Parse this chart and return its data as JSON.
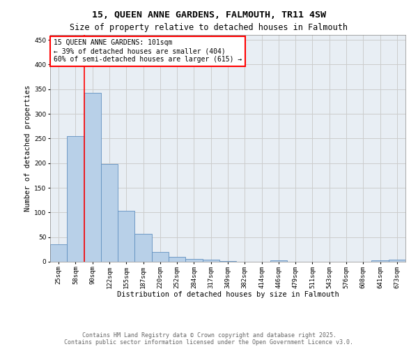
{
  "title1": "15, QUEEN ANNE GARDENS, FALMOUTH, TR11 4SW",
  "title2": "Size of property relative to detached houses in Falmouth",
  "xlabel": "Distribution of detached houses by size in Falmouth",
  "ylabel": "Number of detached properties",
  "categories": [
    "25sqm",
    "58sqm",
    "90sqm",
    "122sqm",
    "155sqm",
    "187sqm",
    "220sqm",
    "252sqm",
    "284sqm",
    "317sqm",
    "349sqm",
    "382sqm",
    "414sqm",
    "446sqm",
    "479sqm",
    "511sqm",
    "543sqm",
    "576sqm",
    "608sqm",
    "641sqm",
    "673sqm"
  ],
  "values": [
    35,
    255,
    343,
    198,
    103,
    57,
    20,
    10,
    6,
    4,
    2,
    0,
    0,
    3,
    0,
    0,
    0,
    0,
    0,
    3,
    4
  ],
  "bar_color": "#b8d0e8",
  "bar_edge_color": "#6090c0",
  "vline_color": "red",
  "vline_x_index": 1.5,
  "annotation_text": "15 QUEEN ANNE GARDENS: 101sqm\n← 39% of detached houses are smaller (404)\n60% of semi-detached houses are larger (615) →",
  "annotation_box_color": "white",
  "annotation_box_edge_color": "red",
  "ylim": [
    0,
    460
  ],
  "yticks": [
    0,
    50,
    100,
    150,
    200,
    250,
    300,
    350,
    400,
    450
  ],
  "grid_color": "#cccccc",
  "background_color": "#e8eef4",
  "footer1": "Contains HM Land Registry data © Crown copyright and database right 2025.",
  "footer2": "Contains public sector information licensed under the Open Government Licence v3.0.",
  "title_fontsize": 9.5,
  "subtitle_fontsize": 8.5,
  "axis_label_fontsize": 7.5,
  "tick_fontsize": 6.5,
  "annotation_fontsize": 7,
  "footer_fontsize": 6
}
